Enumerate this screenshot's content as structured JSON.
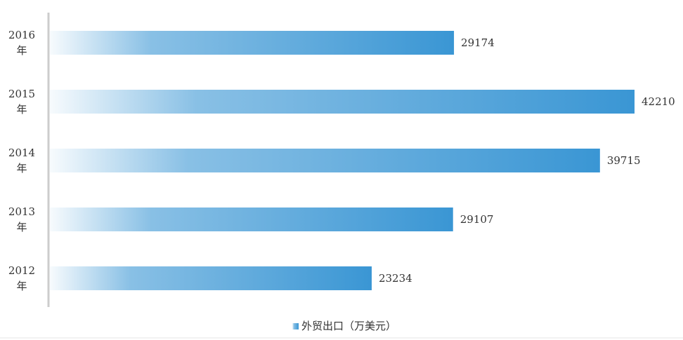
{
  "chart_data": {
    "type": "bar",
    "orientation": "horizontal",
    "categories": [
      "2016年",
      "2015年",
      "2014年",
      "2013年",
      "2012年"
    ],
    "series": [
      {
        "name": "外贸出口（万美元）",
        "color": "#3a96d4",
        "values": [
          29174,
          42210,
          39715,
          29107,
          23234
        ]
      }
    ],
    "xlim": [
      0,
      45000
    ],
    "legend": "bottom"
  }
}
